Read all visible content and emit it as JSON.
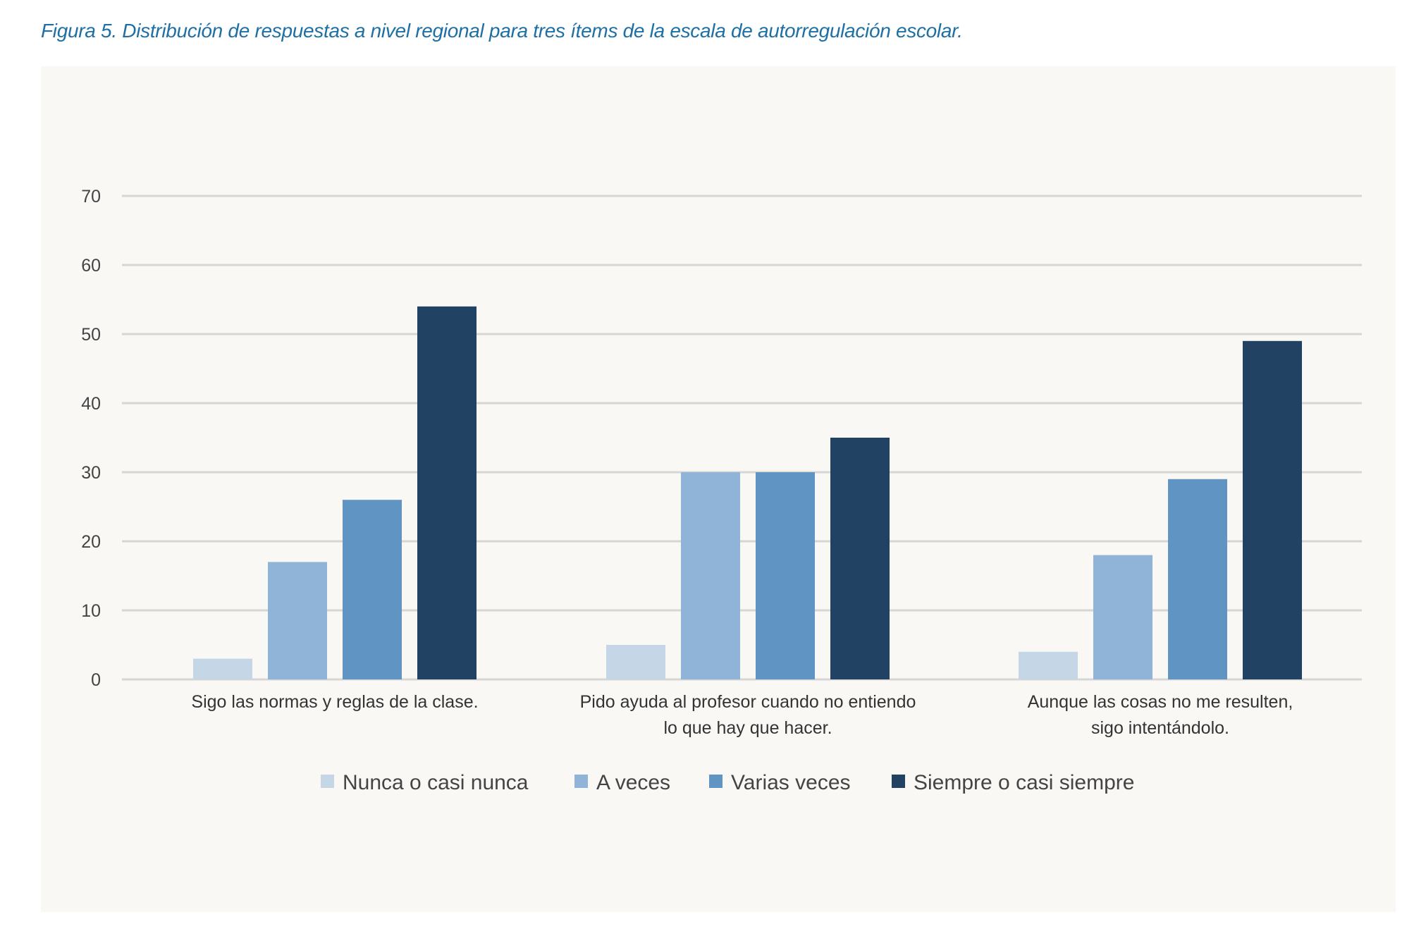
{
  "caption": "Figura 5. Distribución de respuestas a nivel regional para tres ítems de la escala de autorregulación escolar.",
  "chart_data": {
    "type": "bar",
    "title": "",
    "xlabel": "",
    "ylabel": "",
    "ylim": [
      0,
      70
    ],
    "yticks": [
      0,
      10,
      20,
      30,
      40,
      50,
      60,
      70
    ],
    "grid": true,
    "legend_position": "bottom",
    "categories": [
      [
        "Sigo las normas y reglas de la clase."
      ],
      [
        "Pido ayuda al profesor cuando no entiendo",
        "lo que hay que hacer."
      ],
      [
        "Aunque las cosas no me resulten,",
        "sigo intentándolo."
      ]
    ],
    "series": [
      {
        "name": "Nunca o casi nunca",
        "color": "#c5d7e6",
        "values": [
          3,
          5,
          4
        ]
      },
      {
        "name": "A veces",
        "color": "#8fb4d7",
        "values": [
          17,
          30,
          18
        ]
      },
      {
        "name": "Varias veces",
        "color": "#5f94c3",
        "values": [
          26,
          30,
          29
        ]
      },
      {
        "name": "Siempre o casi siempre",
        "color": "#224263",
        "values": [
          54,
          35,
          49
        ]
      }
    ]
  }
}
